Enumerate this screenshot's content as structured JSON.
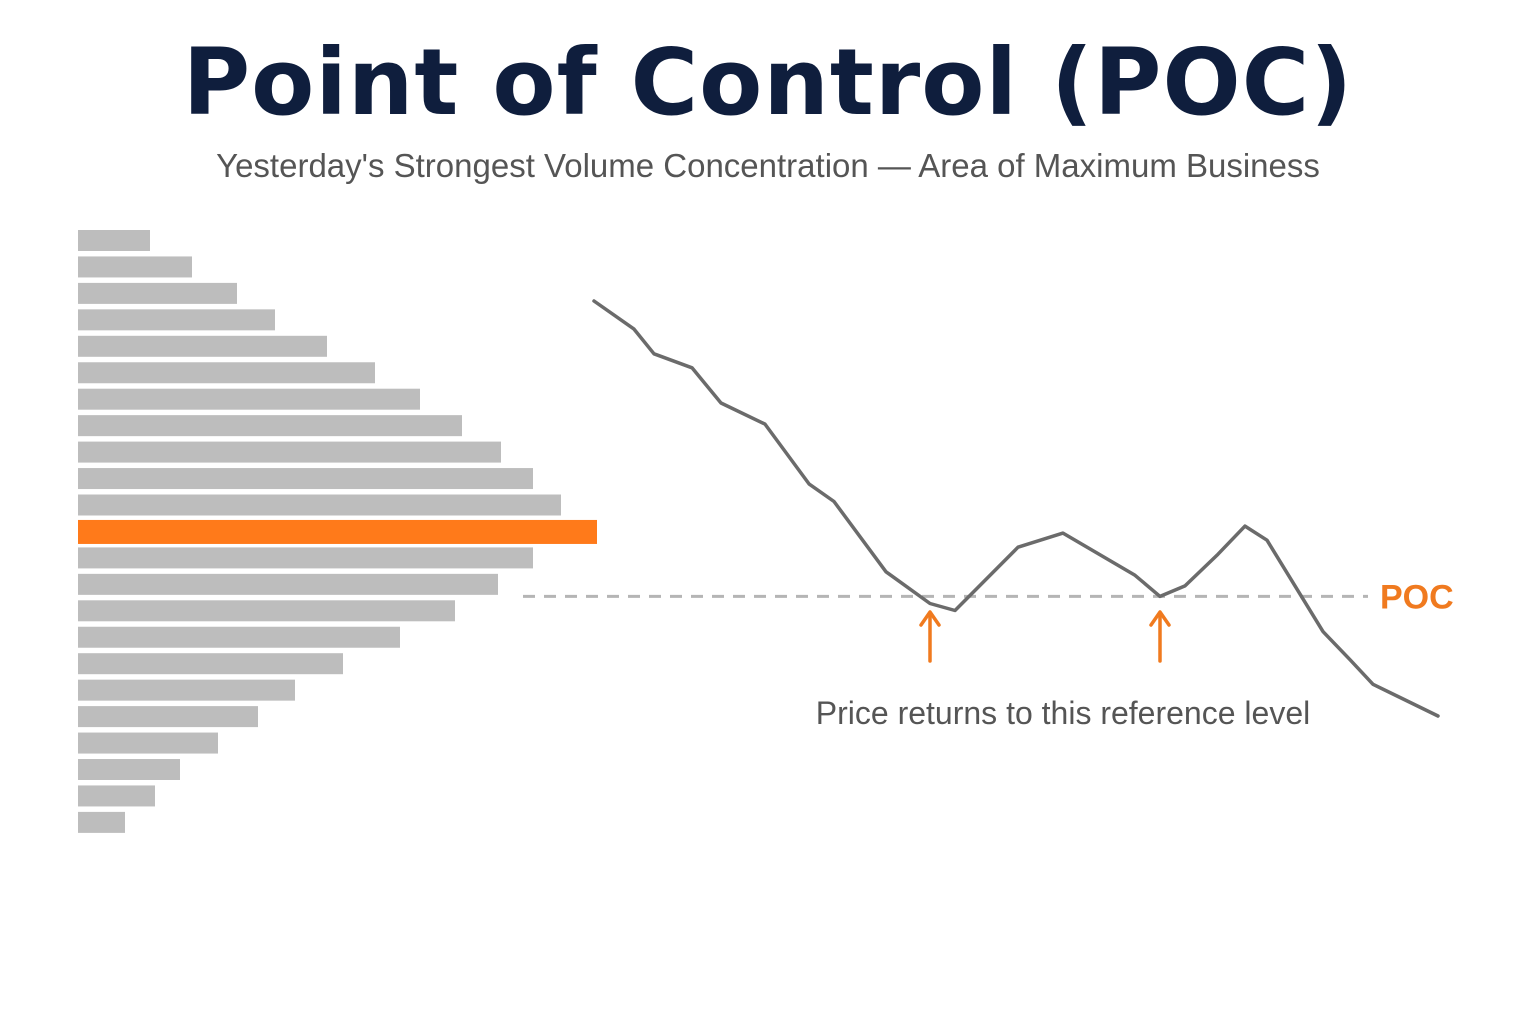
{
  "header": {
    "title": "Point of Control (POC)",
    "subtitle": "Yesterday's Strongest Volume Concentration — Area of Maximum Business"
  },
  "colors": {
    "title": "#0f1e3d",
    "subtitle": "#555555",
    "bar": "#bdbdbd",
    "poc_bar": "#ff7a1a",
    "price_line": "#6b6b6b",
    "poc_line": "#b5b5b5",
    "accent": "#f07a1f",
    "caption": "#555555"
  },
  "chart_data": {
    "type": "diagram",
    "volume_profile": {
      "values": [
        72,
        114,
        159,
        197,
        249,
        297,
        342,
        384,
        423,
        455,
        483,
        519,
        455,
        420,
        377,
        322,
        265,
        217,
        180,
        140,
        102,
        77,
        47
      ],
      "poc_index": 11
    },
    "price_path": {
      "values": [
        0.0,
        0.08,
        0.15,
        0.19,
        0.29,
        0.35,
        0.52,
        0.57,
        0.77,
        0.86,
        0.88,
        0.8,
        0.7,
        0.66,
        0.78,
        0.84,
        0.81,
        0.72,
        0.64,
        0.68,
        0.94,
        1.02,
        1.09,
        1.18
      ]
    },
    "poc_level": 0.84,
    "poc_label": "POC",
    "annotation": "Price returns to this reference level",
    "arrows_at_touch_points": [
      9,
      15
    ]
  }
}
